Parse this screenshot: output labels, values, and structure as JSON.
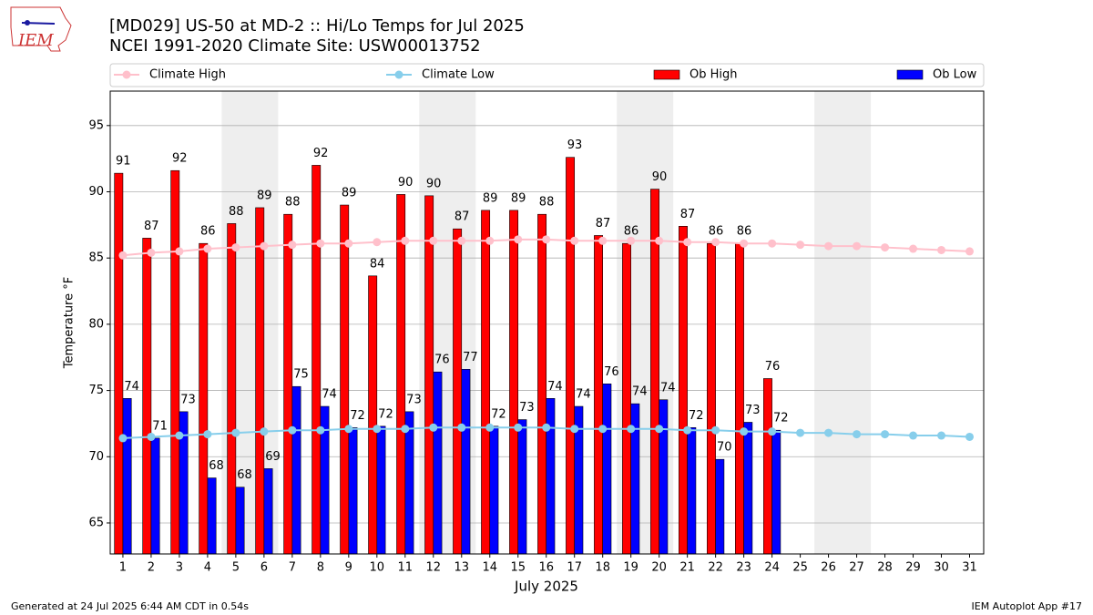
{
  "chart_data": {
    "type": "bar",
    "title": "[MD029] US-50 at MD-2 :: Hi/Lo Temps for Jul 2025",
    "subtitle": "NCEI 1991-2020 Climate Site: USW00013752",
    "logo_text": "IEM",
    "xlabel": "July 2025",
    "ylabel": "Temperature °F",
    "footer_left": "Generated at 24 Jul 2025 6:44 AM CDT in 0.54s",
    "footer_right": "IEM Autoplot App #17",
    "x": [
      1,
      2,
      3,
      4,
      5,
      6,
      7,
      8,
      9,
      10,
      11,
      12,
      13,
      14,
      15,
      16,
      17,
      18,
      19,
      20,
      21,
      22,
      23,
      24,
      25,
      26,
      27,
      28,
      29,
      30,
      31
    ],
    "xlim": [
      0.55,
      31.5
    ],
    "ylim": [
      62.66,
      97.6
    ],
    "yticks": [
      65,
      70,
      75,
      80,
      85,
      90,
      95
    ],
    "grid": true,
    "legend": "top",
    "shaded": [
      [
        5,
        6
      ],
      [
        12,
        13
      ],
      [
        19,
        20
      ],
      [
        26,
        27
      ]
    ],
    "shade_color": "#eeeeee",
    "series": [
      {
        "name": "Climate High",
        "kind": "line",
        "color": "#ffc0cb",
        "values": [
          85.2,
          85.4,
          85.5,
          85.7,
          85.8,
          85.9,
          86.0,
          86.1,
          86.1,
          86.2,
          86.3,
          86.3,
          86.3,
          86.3,
          86.4,
          86.4,
          86.3,
          86.3,
          86.3,
          86.3,
          86.2,
          86.2,
          86.1,
          86.1,
          86.0,
          85.9,
          85.9,
          85.8,
          85.7,
          85.6,
          85.5
        ]
      },
      {
        "name": "Climate Low",
        "kind": "line",
        "color": "#87ceeb",
        "values": [
          71.4,
          71.5,
          71.6,
          71.7,
          71.8,
          71.9,
          72.0,
          72.0,
          72.1,
          72.1,
          72.1,
          72.2,
          72.2,
          72.2,
          72.2,
          72.2,
          72.1,
          72.1,
          72.1,
          72.1,
          72.0,
          72.0,
          71.9,
          71.9,
          71.8,
          71.8,
          71.7,
          71.7,
          71.6,
          71.6,
          71.5
        ]
      },
      {
        "name": "Ob High",
        "kind": "bar",
        "color": "#ff0000",
        "offset": -1,
        "values": [
          91.4,
          86.5,
          91.6,
          86.1,
          87.6,
          88.8,
          88.3,
          92.0,
          89.0,
          83.65,
          89.8,
          89.7,
          87.2,
          88.6,
          88.6,
          88.3,
          92.6,
          86.7,
          86.1,
          90.2,
          87.4,
          86.1,
          86.1,
          75.9,
          null,
          null,
          null,
          null,
          null,
          null,
          null
        ],
        "value_labels": [
          "91",
          "87",
          "92",
          "86",
          "88",
          "89",
          "88",
          "92",
          "89",
          "84",
          "90",
          "90",
          "87",
          "89",
          "89",
          "88",
          "93",
          "87",
          "86",
          "90",
          "87",
          "86",
          "86",
          "76",
          null,
          null,
          null,
          null,
          null,
          null,
          null
        ]
      },
      {
        "name": "Ob Low",
        "kind": "bar",
        "color": "#0000ff",
        "offset": 0,
        "values": [
          74.4,
          71.4,
          73.4,
          68.4,
          67.7,
          69.1,
          75.3,
          73.8,
          72.2,
          72.3,
          73.4,
          76.4,
          76.6,
          72.3,
          72.8,
          74.4,
          73.8,
          75.5,
          74.0,
          74.3,
          72.2,
          69.8,
          72.6,
          72.0,
          null,
          null,
          null,
          null,
          null,
          null,
          null
        ],
        "value_labels": [
          "74",
          "71",
          "73",
          "68",
          "68",
          "69",
          "75",
          "74",
          "72",
          "72",
          "73",
          "76",
          "77",
          "72",
          "73",
          "74",
          "74",
          "76",
          "74",
          "74",
          "72",
          "70",
          "73",
          "72",
          null,
          null,
          null,
          null,
          null,
          null,
          null
        ]
      }
    ]
  }
}
